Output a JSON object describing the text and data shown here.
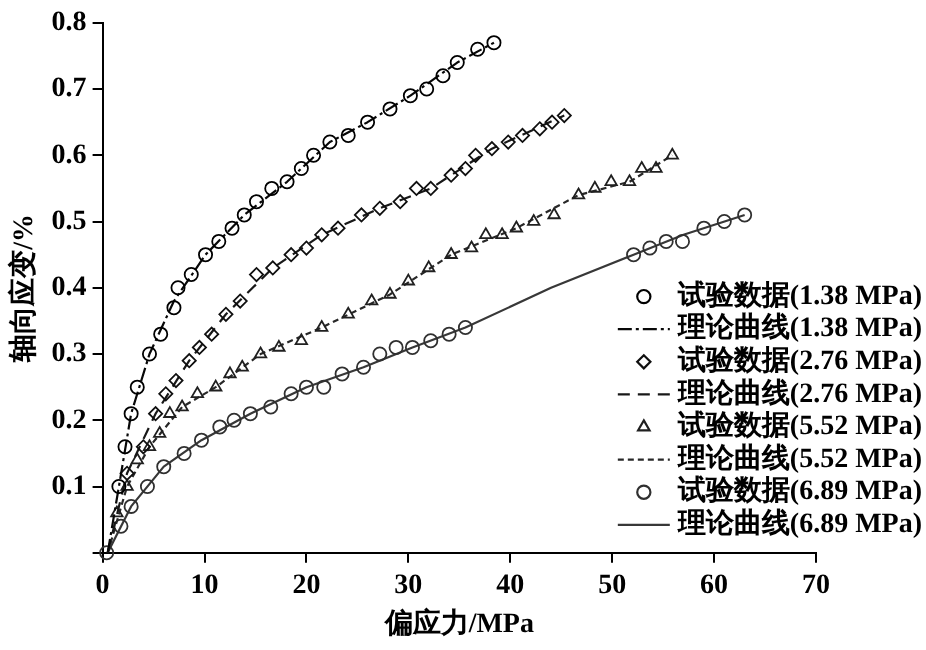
{
  "chart_data": {
    "type": "scatter",
    "xlabel": "偏应力/MPa",
    "ylabel": "轴向应变/%",
    "xlim": [
      0,
      70
    ],
    "xticks": [
      0,
      10,
      20,
      30,
      40,
      50,
      60,
      70
    ],
    "ylim": [
      0,
      0.8
    ],
    "yticks": [
      {
        "value": 0,
        "label": null
      },
      0.1,
      0.2,
      0.3,
      0.4,
      0.5,
      0.6,
      0.7,
      0.8
    ],
    "grid": false,
    "legend": "bottom right",
    "series": [
      {
        "name": "试验数据(1.38 MPa)",
        "color": "#000000",
        "x": [
          1.6,
          2.2,
          2.8,
          3.4,
          4.6,
          5.7,
          7.0,
          7.4,
          8.7,
          10.1,
          11.4,
          12.7,
          13.9,
          15.1,
          16.6,
          18.1,
          19.5,
          20.7,
          22.3,
          24.1,
          26.0,
          28.2,
          30.2,
          31.8,
          33.4,
          34.8,
          36.8,
          38.4
        ],
        "values": [
          0.1,
          0.16,
          0.21,
          0.25,
          0.3,
          0.33,
          0.37,
          0.4,
          0.42,
          0.45,
          0.47,
          0.49,
          0.51,
          0.53,
          0.55,
          0.56,
          0.58,
          0.6,
          0.62,
          0.63,
          0.65,
          0.67,
          0.69,
          0.7,
          0.72,
          0.74,
          0.76,
          0.77
        ]
      },
      {
        "name": "理论曲线(1.38 MPa)",
        "type": "line",
        "line_style": "dashdot",
        "marker": "none",
        "color": "#080808",
        "x": [
          0.5,
          1.6,
          2.8,
          4.6,
          7.0,
          10.1,
          13.9,
          18.1,
          22.3,
          26.0,
          30.2,
          34.8,
          38.4
        ],
        "values": [
          0,
          0.1,
          0.21,
          0.3,
          0.38,
          0.45,
          0.51,
          0.56,
          0.62,
          0.65,
          0.69,
          0.74,
          0.77
        ]
      },
      {
        "name": "试验数据(2.76 MPa)",
        "marker": "diamond",
        "color": "#101010",
        "x": [
          2.4,
          4.0,
          5.2,
          6.2,
          7.2,
          8.5,
          9.5,
          10.7,
          12.1,
          13.5,
          15.1,
          16.7,
          18.5,
          20.0,
          21.5,
          23.1,
          25.4,
          27.2,
          29.2,
          30.8,
          32.2,
          34.2,
          35.6,
          36.6,
          38.2,
          39.8,
          41.2,
          42.9,
          44.1,
          45.3
        ],
        "values": [
          0.12,
          0.16,
          0.21,
          0.24,
          0.26,
          0.29,
          0.31,
          0.33,
          0.36,
          0.38,
          0.42,
          0.43,
          0.45,
          0.46,
          0.48,
          0.49,
          0.51,
          0.52,
          0.53,
          0.55,
          0.55,
          0.57,
          0.58,
          0.6,
          0.61,
          0.62,
          0.63,
          0.64,
          0.65,
          0.66
        ]
      },
      {
        "name": "理论曲线(2.76 MPa)",
        "type": "line",
        "line_style": "dashed",
        "marker": "none",
        "color": "#181818",
        "x": [
          0.5,
          2.4,
          5.2,
          8.5,
          12.1,
          16.7,
          21.5,
          27.2,
          32.2,
          38.2,
          45.3
        ],
        "values": [
          0,
          0.12,
          0.21,
          0.29,
          0.36,
          0.43,
          0.48,
          0.52,
          0.55,
          0.61,
          0.66
        ]
      },
      {
        "name": "试验数据(5.52 MPa)",
        "marker": "triangle",
        "color": "#202020",
        "x": [
          1.4,
          2.4,
          3.4,
          4.6,
          5.6,
          6.6,
          7.8,
          9.3,
          11.1,
          12.5,
          13.7,
          15.5,
          17.3,
          19.5,
          21.5,
          24.1,
          26.4,
          28.2,
          30.0,
          32.0,
          34.2,
          36.2,
          37.6,
          39.2,
          40.6,
          42.3,
          44.3,
          46.7,
          48.3,
          49.9,
          51.7,
          52.9,
          54.3,
          55.9
        ],
        "values": [
          0.06,
          0.1,
          0.14,
          0.16,
          0.18,
          0.21,
          0.22,
          0.24,
          0.25,
          0.27,
          0.28,
          0.3,
          0.31,
          0.32,
          0.34,
          0.36,
          0.38,
          0.39,
          0.41,
          0.43,
          0.45,
          0.46,
          0.48,
          0.48,
          0.49,
          0.5,
          0.51,
          0.54,
          0.55,
          0.56,
          0.56,
          0.58,
          0.58,
          0.6
        ]
      },
      {
        "name": "理论曲线(5.52 MPa)",
        "type": "line",
        "line_style": "dotted",
        "marker": "none",
        "color": "#282828",
        "x": [
          0.5,
          2.4,
          4.6,
          7.8,
          11.1,
          15.5,
          21.5,
          28.2,
          34.2,
          40.6,
          46.7,
          51.7,
          55.9
        ],
        "values": [
          0,
          0.1,
          0.16,
          0.22,
          0.25,
          0.3,
          0.34,
          0.39,
          0.45,
          0.49,
          0.54,
          0.56,
          0.6
        ]
      },
      {
        "name": "试验数据(6.89 MPa)",
        "marker": "circle",
        "color": "#303030",
        "x": [
          0.4,
          1.8,
          2.8,
          4.4,
          6.0,
          8.0,
          9.7,
          11.5,
          12.9,
          14.5,
          16.5,
          18.5,
          20.0,
          21.7,
          23.5,
          25.6,
          27.2,
          28.8,
          30.4,
          32.2,
          34.0,
          35.6,
          52.1,
          53.7,
          55.3,
          56.9,
          59.0,
          61.0,
          63.0
        ],
        "values": [
          0,
          0.04,
          0.07,
          0.1,
          0.13,
          0.15,
          0.17,
          0.19,
          0.2,
          0.21,
          0.22,
          0.24,
          0.25,
          0.25,
          0.27,
          0.28,
          0.3,
          0.31,
          0.31,
          0.32,
          0.33,
          0.34,
          0.45,
          0.46,
          0.47,
          0.47,
          0.49,
          0.5,
          0.51
        ]
      },
      {
        "name": "理论曲线(6.89 MPa)",
        "type": "line",
        "line_style": "solid",
        "marker": "none",
        "color": "#383838",
        "x": [
          0.5,
          2.8,
          6.0,
          9.7,
          14.5,
          20.0,
          25.6,
          30.4,
          35.6,
          44.0,
          52.1,
          57.0,
          63.0
        ],
        "values": [
          0,
          0.07,
          0.13,
          0.17,
          0.21,
          0.25,
          0.28,
          0.31,
          0.34,
          0.4,
          0.45,
          0.48,
          0.51
        ]
      }
    ]
  }
}
